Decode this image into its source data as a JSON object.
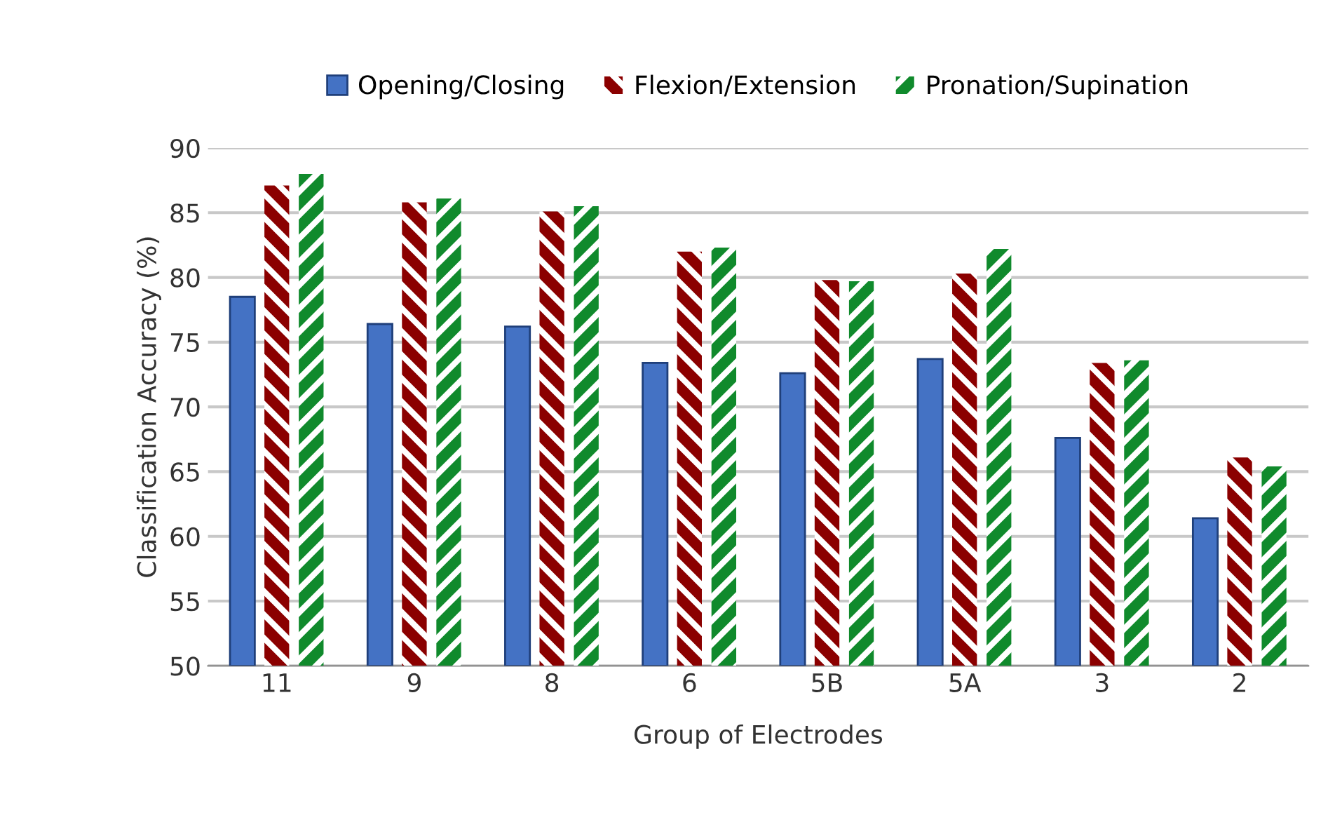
{
  "chart_data": {
    "type": "bar",
    "xlabel": "Group of Electrodes",
    "ylabel": "Classification Accuracy (%)",
    "categories": [
      "11",
      "9",
      "8",
      "6",
      "5B",
      "5A",
      "3",
      "2"
    ],
    "series": [
      {
        "name": "Opening/Closing",
        "color": "#4472c4",
        "values": [
          78.5,
          76.4,
          76.2,
          73.4,
          72.6,
          73.7,
          67.6,
          61.4
        ]
      },
      {
        "name": "Flexion/Extension",
        "color": "#8b0000",
        "values": [
          87.1,
          85.8,
          85.1,
          82.0,
          79.8,
          80.3,
          73.4,
          66.1
        ]
      },
      {
        "name": "Pronation/Supination",
        "color": "#108a2c",
        "values": [
          88.0,
          86.1,
          85.5,
          82.3,
          79.7,
          82.2,
          73.6,
          65.4
        ]
      }
    ],
    "ylim": [
      50,
      90
    ],
    "yticks": [
      50,
      55,
      60,
      65,
      70,
      75,
      80,
      85,
      90
    ],
    "grid": "y",
    "legend": "top"
  }
}
